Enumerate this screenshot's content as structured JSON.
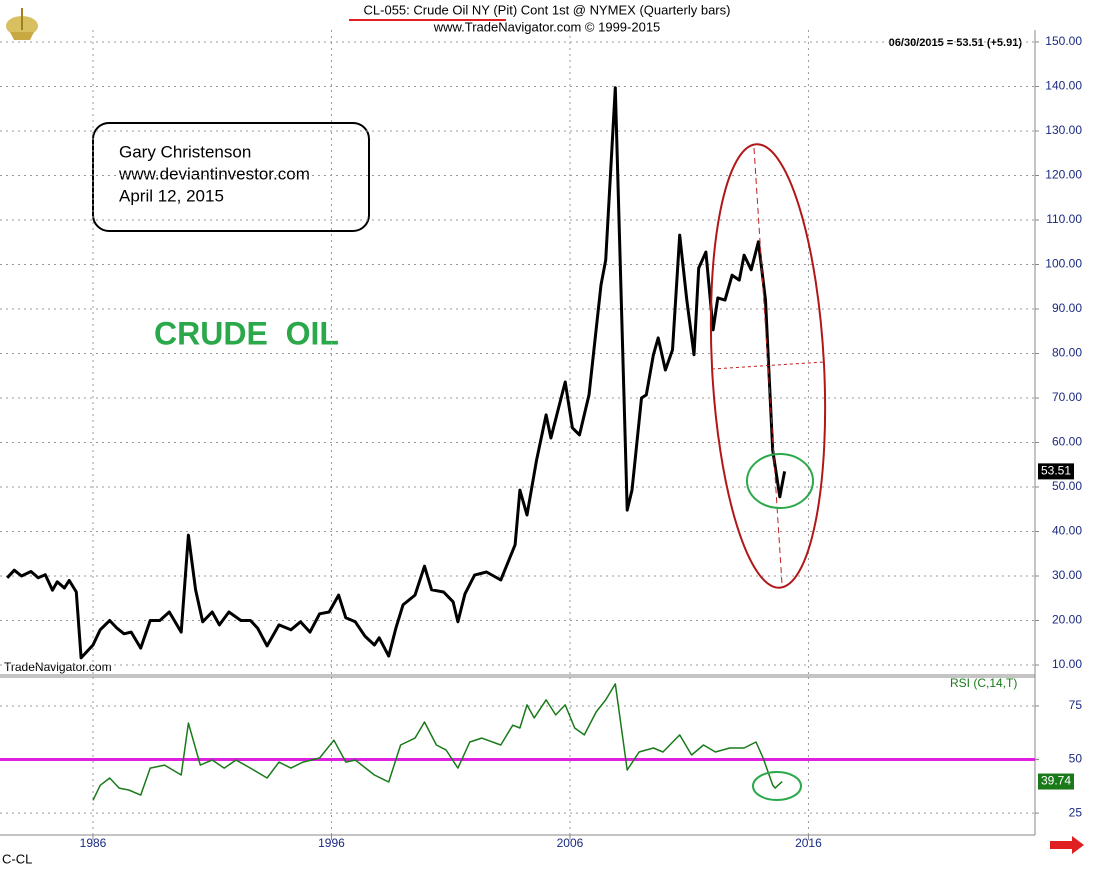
{
  "chart_data": [
    {
      "type": "line",
      "title": "CL-055:  Crude Oil NY (Pit) Cont 1st @ NYMEX  (Quarterly bars)",
      "subtitle": "www.TradeNavigator.com © 1999-2015",
      "annotation": "06/30/2015 = 53.51 (+5.91)",
      "note_lines": [
        "Gary Christenson",
        "www.deviantinvestor.com",
        "April 12, 2015"
      ],
      "headline": "CRUDE  OIL",
      "watermark": "TradeNavigator.com",
      "symbol": "C-CL",
      "last_value_label": "53.51",
      "color": "#000000",
      "grid": true,
      "xlim": [
        1982.1,
        2025.5
      ],
      "ylim": [
        7.75,
        152.7
      ],
      "yticks": [
        {
          "value": 10,
          "label": "10.00"
        },
        {
          "value": 20,
          "label": "20.00"
        },
        {
          "value": 30,
          "label": "30.00"
        },
        {
          "value": 40,
          "label": "40.00"
        },
        {
          "value": 50,
          "label": "50.00"
        },
        {
          "value": 60,
          "label": "60.00"
        },
        {
          "value": 70,
          "label": "70.00"
        },
        {
          "value": 80,
          "label": "80.00"
        },
        {
          "value": 90,
          "label": "90.00"
        },
        {
          "value": 100,
          "label": "100.00"
        },
        {
          "value": 110,
          "label": "110.00"
        },
        {
          "value": 120,
          "label": "120.00"
        },
        {
          "value": 130,
          "label": "130.00"
        },
        {
          "value": 140,
          "label": "140.00"
        },
        {
          "value": 150,
          "label": "150.00"
        }
      ],
      "x": [
        1982.4,
        1982.7,
        1983.0,
        1983.4,
        1983.7,
        1984.0,
        1984.3,
        1984.5,
        1984.8,
        1985.0,
        1985.3,
        1985.5,
        1986.0,
        1986.3,
        1986.7,
        1987.0,
        1987.3,
        1987.6,
        1988.0,
        1988.4,
        1988.8,
        1989.2,
        1989.7,
        1990.0,
        1990.3,
        1990.6,
        1991.0,
        1991.3,
        1991.7,
        1992.2,
        1992.6,
        1992.9,
        1993.3,
        1993.8,
        1994.3,
        1994.7,
        1995.1,
        1995.5,
        1995.9,
        1996.3,
        1996.6,
        1997.0,
        1997.4,
        1997.8,
        1998.0,
        1998.4,
        1998.7,
        1999.0,
        1999.5,
        1999.9,
        2000.2,
        2000.7,
        2001.1,
        2001.3,
        2001.6,
        2002.0,
        2002.5,
        2003.1,
        2003.7,
        2003.9,
        2004.2,
        2004.6,
        2005.0,
        2005.2,
        2005.8,
        2006.1,
        2006.4,
        2006.8,
        2007.3,
        2007.5,
        2007.9,
        2008.2,
        2008.4,
        2008.6,
        2009.0,
        2009.2,
        2009.5,
        2009.7,
        2010.0,
        2010.3,
        2010.6,
        2010.9,
        2011.2,
        2011.4,
        2011.7,
        2012.0,
        2012.2,
        2012.5,
        2012.8,
        2013.1,
        2013.3,
        2013.6,
        2013.9,
        2014.2,
        2014.5,
        2014.8,
        2015.0
      ],
      "values": [
        29.6,
        31.3,
        30,
        31,
        29.6,
        30.3,
        26.8,
        28.7,
        27.3,
        29,
        26.4,
        11.6,
        14.5,
        17.9,
        20,
        18.3,
        17,
        17.4,
        13.8,
        20,
        20,
        21.9,
        17.4,
        39.2,
        26.9,
        19.7,
        21.9,
        19,
        21.9,
        20,
        20,
        18.3,
        14.3,
        19,
        17.9,
        19.7,
        17.4,
        21.5,
        21.9,
        25.7,
        20.6,
        19.7,
        16.5,
        14.5,
        16.1,
        12,
        18.3,
        23.5,
        25.7,
        32.2,
        26.9,
        26.4,
        24.2,
        19.7,
        26,
        30.2,
        30.9,
        29.1,
        37,
        49.3,
        43.7,
        56.1,
        66.2,
        61,
        73.6,
        63.3,
        61.7,
        70.7,
        95.4,
        101,
        139.7,
        83,
        44.8,
        49.3,
        70,
        70.7,
        79.7,
        83.5,
        76.3,
        80.8,
        106.6,
        92,
        79.7,
        99.2,
        102.8,
        85.3,
        92.5,
        92,
        97.6,
        96.5,
        102.1,
        98.8,
        105.1,
        92,
        58.3,
        47.8,
        53.51
      ]
    },
    {
      "type": "line",
      "label": "RSI (C,14,T)",
      "last_value_label": "39.74",
      "color": "#1a7a1a",
      "reference_line": {
        "value": 50,
        "color": "#e020e0"
      },
      "grid": true,
      "xlim": [
        1982.1,
        2025.5
      ],
      "xticks": [
        1986,
        1996,
        2006,
        2016
      ],
      "ylim": [
        14.8,
        88.5
      ],
      "yticks": [
        75,
        50,
        25
      ],
      "x": [
        1986.0,
        1986.3,
        1986.7,
        1987.1,
        1987.5,
        1988.0,
        1988.4,
        1989.0,
        1989.7,
        1990.0,
        1990.5,
        1991.0,
        1991.5,
        1992.0,
        1992.6,
        1993.3,
        1993.8,
        1994.3,
        1994.8,
        1995.5,
        1996.1,
        1996.6,
        1997.0,
        1997.8,
        1998.4,
        1998.9,
        1999.5,
        1999.9,
        2000.4,
        2000.8,
        2001.3,
        2001.8,
        2002.3,
        2003.1,
        2003.6,
        2003.9,
        2004.2,
        2004.5,
        2005.0,
        2005.4,
        2005.8,
        2006.2,
        2006.6,
        2007.1,
        2007.5,
        2007.9,
        2008.4,
        2008.9,
        2009.5,
        2009.9,
        2010.6,
        2011.1,
        2011.6,
        2012.1,
        2012.7,
        2013.3,
        2013.8,
        2014.1,
        2014.5,
        2014.6,
        2014.9
      ],
      "values": [
        31,
        38,
        41.4,
        36.7,
        35.8,
        33.4,
        46,
        47.4,
        42.8,
        67,
        47.4,
        49.8,
        46,
        49.8,
        46,
        41.4,
        48.8,
        46,
        48.8,
        50.7,
        59,
        48.8,
        49.8,
        42.8,
        39.5,
        56.8,
        60,
        67.5,
        56.8,
        54.5,
        46,
        58.2,
        60,
        56.8,
        66,
        64.7,
        75.5,
        69.4,
        77.8,
        70.8,
        75.5,
        64.7,
        61.5,
        72.2,
        77.8,
        85.3,
        45.1,
        53.5,
        55.4,
        53.5,
        61.5,
        52.1,
        56.8,
        53.5,
        55.4,
        55.4,
        58.2,
        50.7,
        38.1,
        36.7,
        39.74
      ]
    }
  ]
}
